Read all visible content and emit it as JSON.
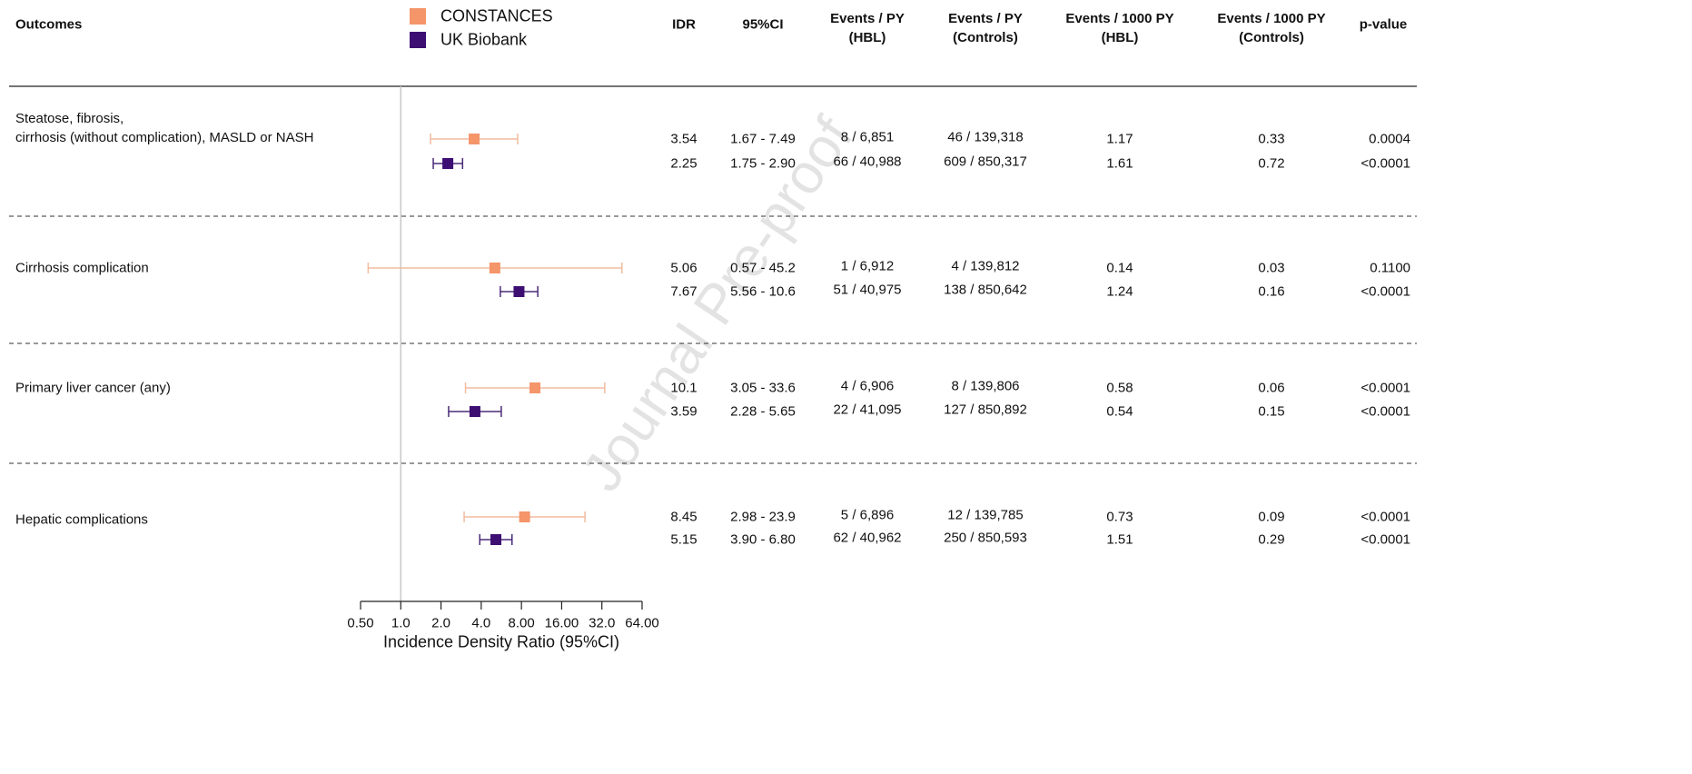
{
  "chart_data": {
    "type": "forest",
    "outcomes_header": "Outcomes",
    "columns": [
      "IDR",
      "95%CI",
      "Events / PY\n(HBL)",
      "Events / PY\n(Controls)",
      "Events / 1000 PY\n(HBL)",
      "Events / 1000 PY\n(Controls)",
      "p-value"
    ],
    "categories": [
      "Steatose, fibrosis,\ncirrhosis (without complication), MASLD or NASH",
      "Cirrhosis complication",
      "Primary liver cancer (any)",
      "Hepatic complications"
    ],
    "series": [
      {
        "name": "CONSTANCES",
        "color": "#f4956a",
        "ci_color": "#f2bc9f",
        "values": [
          3.54,
          5.06,
          10.1,
          8.45
        ],
        "lower": [
          1.67,
          0.57,
          3.05,
          2.98
        ],
        "upper": [
          7.49,
          45.2,
          33.6,
          23.9
        ],
        "ci_labels": [
          "1.67 - 7.49",
          "0.57 - 45.2",
          "3.05 - 33.6",
          "2.98 - 23.9"
        ],
        "events_hbl": [
          "8 / 6,851",
          "1 / 6,912",
          "4 / 6,906",
          "5 / 6,896"
        ],
        "events_controls": [
          "46 / 139,318",
          "4 / 139,812",
          "8 / 139,806",
          "12 / 139,785"
        ],
        "rate_hbl": [
          1.17,
          0.14,
          0.58,
          0.73
        ],
        "rate_controls": [
          0.33,
          0.03,
          0.06,
          0.09
        ],
        "p_values": [
          "0.0004",
          "0.1100",
          "<0.0001",
          "<0.0001"
        ]
      },
      {
        "name": "UK Biobank",
        "color": "#3d0f72",
        "ci_color": "#4a2a78",
        "values": [
          2.25,
          7.67,
          3.59,
          5.15
        ],
        "lower": [
          1.75,
          5.56,
          2.28,
          3.9
        ],
        "upper": [
          2.9,
          10.6,
          5.65,
          6.8
        ],
        "ci_labels": [
          "1.75 - 2.90",
          "5.56 - 10.6",
          "2.28 - 5.65",
          "3.90 - 6.80"
        ],
        "events_hbl": [
          "66 / 40,988",
          "51 / 40,975",
          "22 / 41,095",
          "62 / 40,962"
        ],
        "events_controls": [
          "609 / 850,317",
          "138 / 850,642",
          "127 / 850,892",
          "250 / 850,593"
        ],
        "rate_hbl": [
          1.61,
          1.24,
          0.54,
          1.51
        ],
        "rate_controls": [
          0.72,
          0.16,
          0.15,
          0.29
        ],
        "p_values": [
          "<0.0001",
          "<0.0001",
          "<0.0001",
          "<0.0001"
        ]
      }
    ],
    "x_log": true,
    "xlim": [
      0.5,
      64
    ],
    "xticks": [
      {
        "value": 0.5,
        "label": "0.50"
      },
      {
        "value": 1,
        "label": "1.0"
      },
      {
        "value": 2,
        "label": "2.0"
      },
      {
        "value": 4,
        "label": "4.0"
      },
      {
        "value": 8,
        "label": "8.00"
      },
      {
        "value": 16,
        "label": "16.00"
      },
      {
        "value": 32,
        "label": "32.0"
      },
      {
        "value": 64,
        "label": "64.00"
      }
    ],
    "reference_line": 1,
    "x_label": "Incidence Density Ratio (95%CI)",
    "watermark": "Journal Pre-proof"
  }
}
